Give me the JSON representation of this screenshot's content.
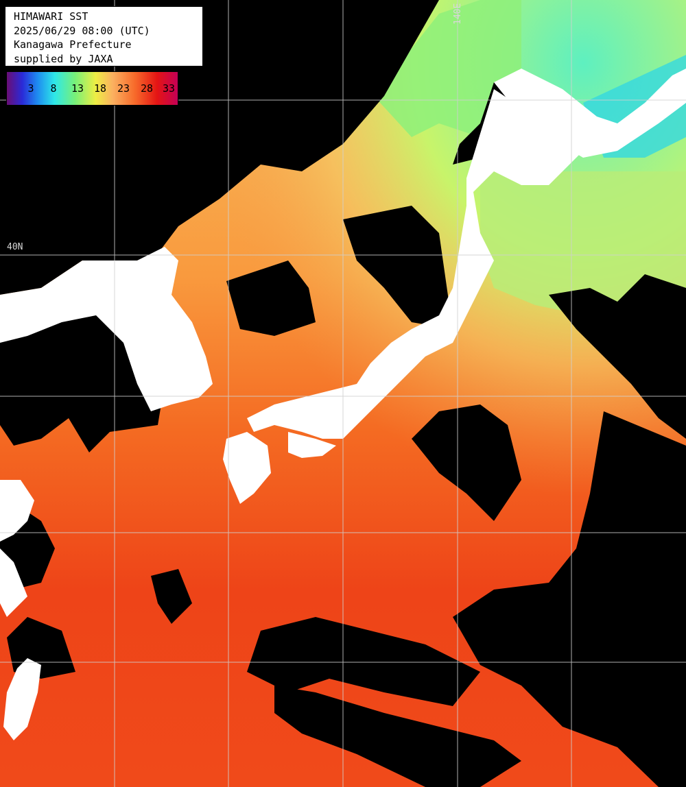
{
  "info": {
    "title": "HIMAWARI SST",
    "datetime": "2025/06/29 08:00 (UTC)",
    "region": "Kanagawa Prefecture",
    "credit": "supplied by JAXA"
  },
  "legend": {
    "ticks": [
      "3",
      "8",
      "13",
      "18",
      "23",
      "28",
      "33"
    ],
    "colors": [
      "#6a0d74",
      "#2a2ad8",
      "#1e8cf0",
      "#2ee8e8",
      "#78f078",
      "#eeee44",
      "#fbb060",
      "#f76a2a",
      "#e41414",
      "#c40056"
    ]
  },
  "grid_labels": {
    "lat": "40N",
    "lon": "140E"
  },
  "colors": {
    "land": "#ffffff",
    "cloud": "#000000",
    "gridline": "#d0d0d0"
  }
}
